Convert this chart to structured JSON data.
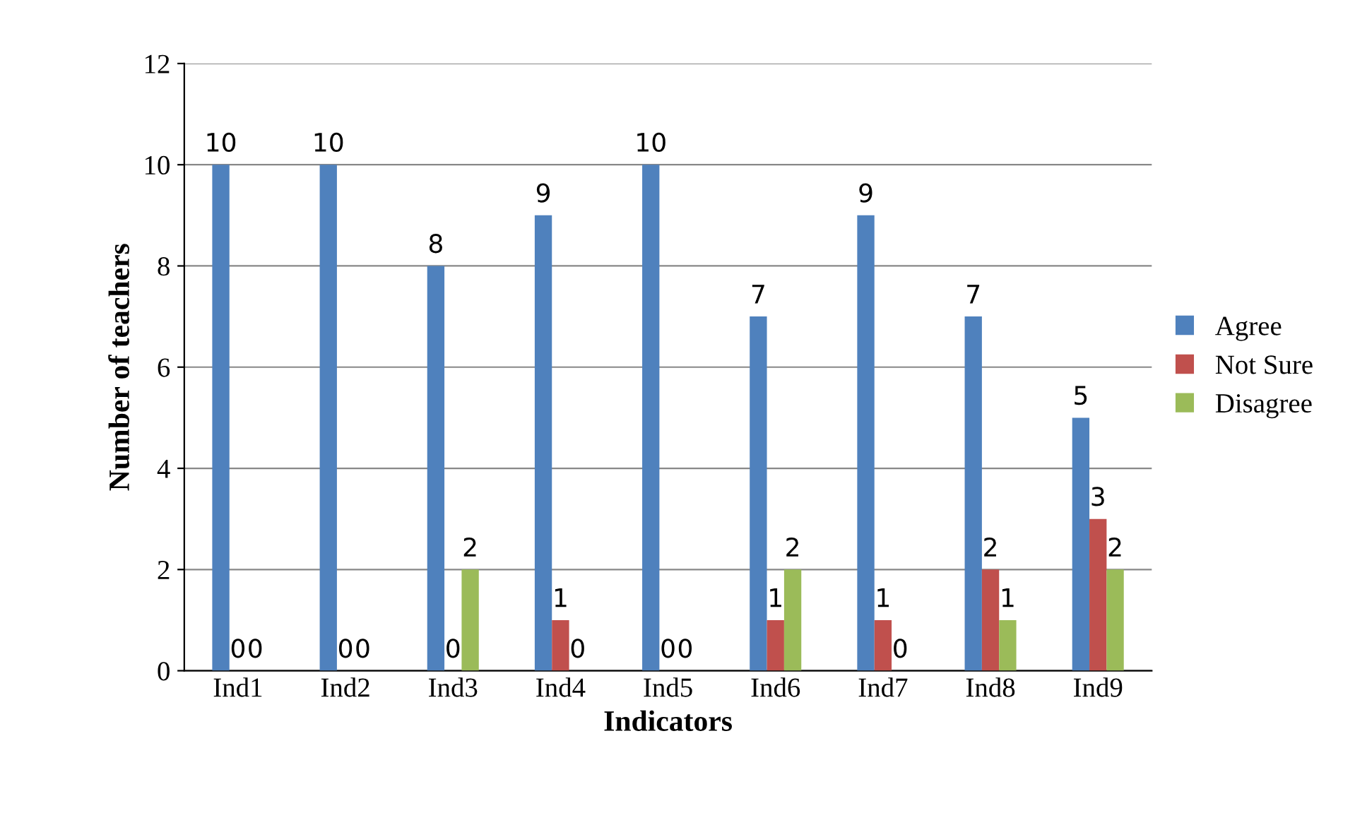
{
  "chart_data": {
    "type": "bar",
    "xlabel": "Indicators",
    "ylabel": "Number of teachers",
    "categories": [
      "Ind1",
      "Ind2",
      "Ind3",
      "Ind4",
      "Ind5",
      "Ind6",
      "Ind7",
      "Ind8",
      "Ind9"
    ],
    "series": [
      {
        "name": "Agree",
        "color": "#4f81bd",
        "values": [
          10,
          10,
          8,
          9,
          10,
          7,
          9,
          7,
          5
        ]
      },
      {
        "name": "Not Sure",
        "color": "#c0504d",
        "values": [
          0,
          0,
          0,
          1,
          0,
          1,
          1,
          2,
          3
        ]
      },
      {
        "name": "Disagree",
        "color": "#9bbb59",
        "values": [
          0,
          0,
          2,
          0,
          0,
          2,
          0,
          1,
          2
        ]
      }
    ],
    "ylim": [
      0,
      12
    ],
    "yticks": [
      0,
      2,
      4,
      6,
      8,
      10,
      12
    ],
    "grid": "y",
    "legend": "right",
    "data_labels": true
  }
}
